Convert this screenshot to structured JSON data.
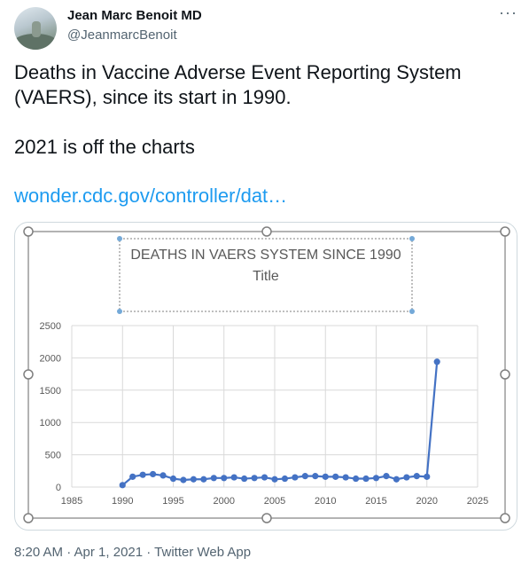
{
  "author": {
    "name": "Jean Marc Benoit MD",
    "handle": "@JeanmarcBenoit"
  },
  "more_label": "···",
  "tweet": {
    "text": "Deaths in Vaccine Adverse Event Reporting System (VAERS), since its start in 1990.\n\n2021 is off the charts",
    "link": "wonder.cdc.gov/controller/dat…"
  },
  "meta": {
    "timestamp": "8:20 AM · Apr 1, 2021 · Twitter Web App"
  },
  "colors": {
    "link": "#1d9bf0",
    "series": "#4472c4",
    "handle": "#74a9d8"
  },
  "chart_data": {
    "type": "line",
    "title": "DEATHS IN VAERS SYSTEM SINCE 1990",
    "subtitle": "Title",
    "xlim": [
      1985,
      2025
    ],
    "ylim": [
      0,
      2500
    ],
    "x_ticks": [
      1985,
      1990,
      1995,
      2000,
      2005,
      2010,
      2015,
      2020,
      2025
    ],
    "y_ticks": [
      0,
      500,
      1000,
      1500,
      2000,
      2500
    ],
    "grid": true,
    "series": [
      {
        "x": [
          1990,
          1991,
          1992,
          1993,
          1994,
          1995,
          1996,
          1997,
          1998,
          1999,
          2000,
          2001,
          2002,
          2003,
          2004,
          2005,
          2006,
          2007,
          2008,
          2009,
          2010,
          2011,
          2012,
          2013,
          2014,
          2015,
          2016,
          2017,
          2018,
          2019,
          2020,
          2021
        ],
        "y": [
          30,
          160,
          190,
          200,
          180,
          130,
          110,
          120,
          120,
          140,
          140,
          150,
          130,
          140,
          150,
          120,
          130,
          150,
          170,
          170,
          160,
          160,
          150,
          130,
          130,
          140,
          170,
          120,
          150,
          170,
          160,
          1940
        ]
      }
    ]
  }
}
